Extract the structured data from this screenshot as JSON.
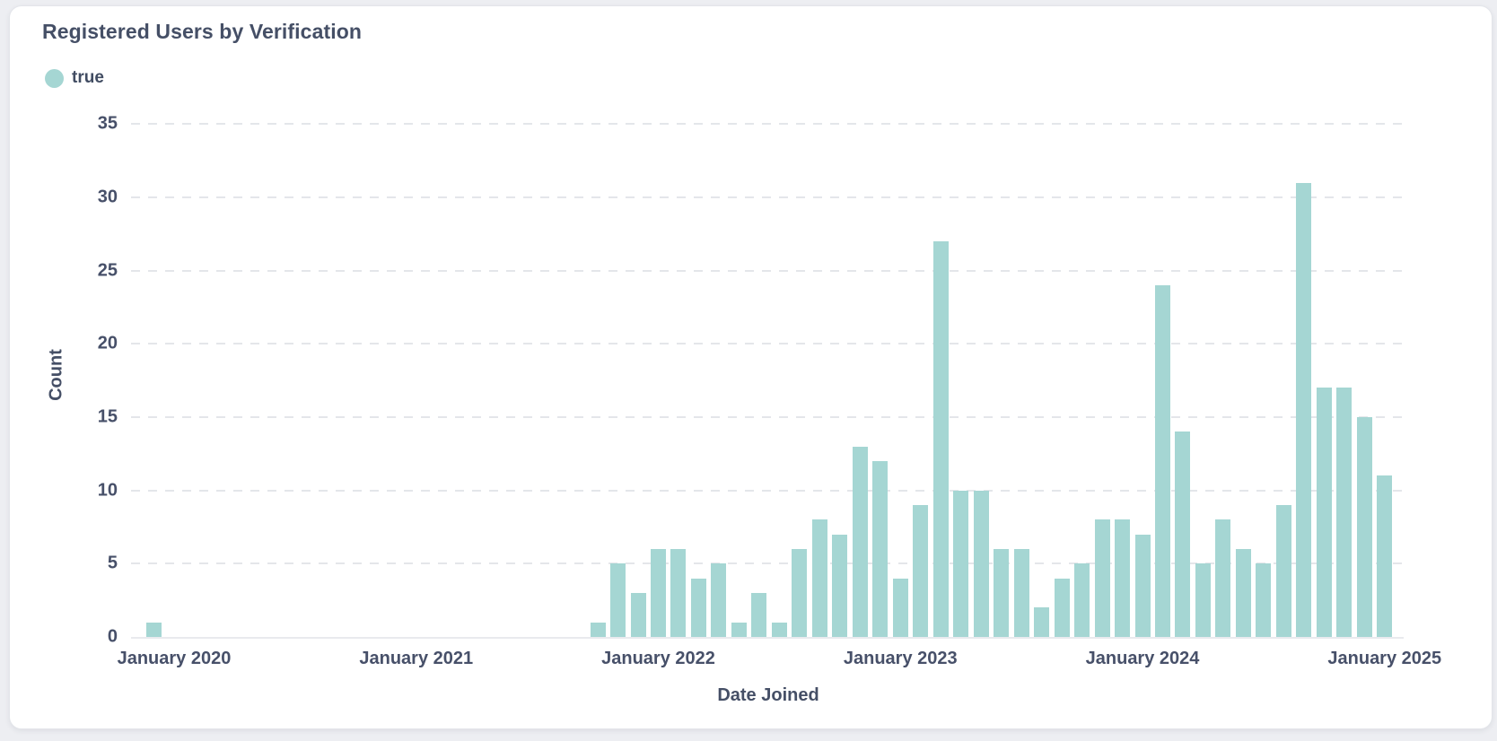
{
  "card": {
    "background": "#ffffff",
    "page_background": "#edeef2"
  },
  "chart_data": {
    "type": "bar",
    "title": "Registered Users by Verification",
    "xlabel": "Date Joined",
    "ylabel": "Count",
    "x_unit": "month",
    "ylim": [
      0,
      36
    ],
    "yticks": [
      0,
      5,
      10,
      15,
      20,
      25,
      30,
      35
    ],
    "grid": "horizontal-dashed",
    "legend": {
      "position": "top-left",
      "entries": [
        {
          "label": "true",
          "color": "#a5d6d3"
        }
      ]
    },
    "x_tick_labels": [
      {
        "label": "January 2020",
        "month": "2020-01"
      },
      {
        "label": "January 2021",
        "month": "2021-01"
      },
      {
        "label": "January 2022",
        "month": "2022-01"
      },
      {
        "label": "January 2023",
        "month": "2023-01"
      },
      {
        "label": "January 2024",
        "month": "2024-01"
      },
      {
        "label": "January 2025",
        "month": "2025-01"
      }
    ],
    "series": [
      {
        "name": "true",
        "color": "#a5d6d3",
        "points": [
          {
            "month": "2019-12",
            "value": 1
          },
          {
            "month": "2020-01",
            "value": 0
          },
          {
            "month": "2020-02",
            "value": 0
          },
          {
            "month": "2020-03",
            "value": 0
          },
          {
            "month": "2020-04",
            "value": 0
          },
          {
            "month": "2020-05",
            "value": 0
          },
          {
            "month": "2020-06",
            "value": 0
          },
          {
            "month": "2020-07",
            "value": 0
          },
          {
            "month": "2020-08",
            "value": 0
          },
          {
            "month": "2020-09",
            "value": 0
          },
          {
            "month": "2020-10",
            "value": 0
          },
          {
            "month": "2020-11",
            "value": 0
          },
          {
            "month": "2020-12",
            "value": 0
          },
          {
            "month": "2021-01",
            "value": 0
          },
          {
            "month": "2021-02",
            "value": 0
          },
          {
            "month": "2021-03",
            "value": 0
          },
          {
            "month": "2021-04",
            "value": 0
          },
          {
            "month": "2021-05",
            "value": 0
          },
          {
            "month": "2021-06",
            "value": 0
          },
          {
            "month": "2021-07",
            "value": 0
          },
          {
            "month": "2021-08",
            "value": 0
          },
          {
            "month": "2021-09",
            "value": 0
          },
          {
            "month": "2021-10",
            "value": 1
          },
          {
            "month": "2021-11",
            "value": 5
          },
          {
            "month": "2021-12",
            "value": 3
          },
          {
            "month": "2022-01",
            "value": 6
          },
          {
            "month": "2022-02",
            "value": 6
          },
          {
            "month": "2022-03",
            "value": 4
          },
          {
            "month": "2022-04",
            "value": 5
          },
          {
            "month": "2022-05",
            "value": 1
          },
          {
            "month": "2022-06",
            "value": 3
          },
          {
            "month": "2022-07",
            "value": 1
          },
          {
            "month": "2022-08",
            "value": 6
          },
          {
            "month": "2022-09",
            "value": 8
          },
          {
            "month": "2022-10",
            "value": 7
          },
          {
            "month": "2022-11",
            "value": 13
          },
          {
            "month": "2022-12",
            "value": 12
          },
          {
            "month": "2023-01",
            "value": 4
          },
          {
            "month": "2023-02",
            "value": 9
          },
          {
            "month": "2023-03",
            "value": 27
          },
          {
            "month": "2023-04",
            "value": 10
          },
          {
            "month": "2023-05",
            "value": 10
          },
          {
            "month": "2023-06",
            "value": 6
          },
          {
            "month": "2023-07",
            "value": 6
          },
          {
            "month": "2023-08",
            "value": 2
          },
          {
            "month": "2023-09",
            "value": 4
          },
          {
            "month": "2023-10",
            "value": 5
          },
          {
            "month": "2023-11",
            "value": 8
          },
          {
            "month": "2023-12",
            "value": 8
          },
          {
            "month": "2024-01",
            "value": 7
          },
          {
            "month": "2024-02",
            "value": 24
          },
          {
            "month": "2024-03",
            "value": 14
          },
          {
            "month": "2024-04",
            "value": 5
          },
          {
            "month": "2024-05",
            "value": 8
          },
          {
            "month": "2024-06",
            "value": 6
          },
          {
            "month": "2024-07",
            "value": 5
          },
          {
            "month": "2024-08",
            "value": 9
          },
          {
            "month": "2024-09",
            "value": 31
          },
          {
            "month": "2024-10",
            "value": 17
          },
          {
            "month": "2024-11",
            "value": 17
          },
          {
            "month": "2024-12",
            "value": 15
          },
          {
            "month": "2025-01",
            "value": 11
          }
        ]
      }
    ]
  }
}
